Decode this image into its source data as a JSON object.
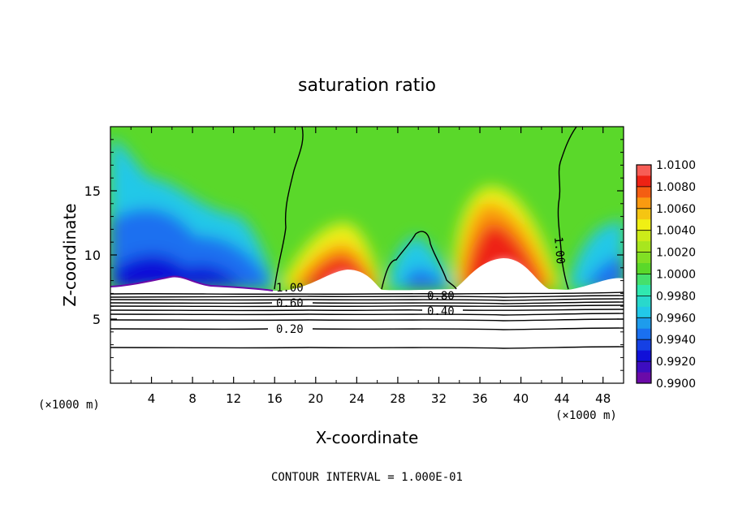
{
  "chart_data": {
    "type": "heatmap",
    "title": "saturation ratio",
    "xlabel": "X-coordinate",
    "ylabel": "Z-coordinate",
    "x_unit_left": "(×1000 m)",
    "x_unit_right": "(×1000 m)",
    "footer": "CONTOUR INTERVAL = 1.000E-01",
    "xlim": [
      0,
      50
    ],
    "ylim": [
      0,
      20
    ],
    "x_ticks": [
      4,
      8,
      12,
      16,
      20,
      24,
      28,
      32,
      36,
      40,
      44,
      48
    ],
    "y_ticks": [
      5,
      10,
      15
    ],
    "colorbar": {
      "levels": [
        0.99,
        0.992,
        0.994,
        0.996,
        0.998,
        1.0,
        1.002,
        1.004,
        1.006,
        1.008,
        1.01
      ],
      "tick_labels": [
        "0.9900",
        "0.9920",
        "0.9940",
        "0.9960",
        "0.9980",
        "1.0000",
        "1.0020",
        "1.0040",
        "1.0060",
        "1.0080",
        "1.0100"
      ],
      "colors": [
        "#6b0aa8",
        "#1010d8",
        "#1a70f0",
        "#22c8e8",
        "#30e8b0",
        "#5ad82a",
        "#a8e61e",
        "#f0f014",
        "#fa9a10",
        "#ee2214",
        "#ff9898"
      ]
    },
    "contour_lines": [
      {
        "label": "1.00",
        "type": "boundary"
      },
      {
        "label": "0.80",
        "z_approx": 6.9
      },
      {
        "label": "0.60",
        "z_approx": 6.4
      },
      {
        "label": "0.40",
        "z_approx": 5.9
      },
      {
        "label": "0.20",
        "z_approx": 4.5
      }
    ],
    "inline_labels": [
      "1.00",
      "0.80",
      "0.60",
      "0.40",
      "0.20",
      "1.00"
    ]
  }
}
